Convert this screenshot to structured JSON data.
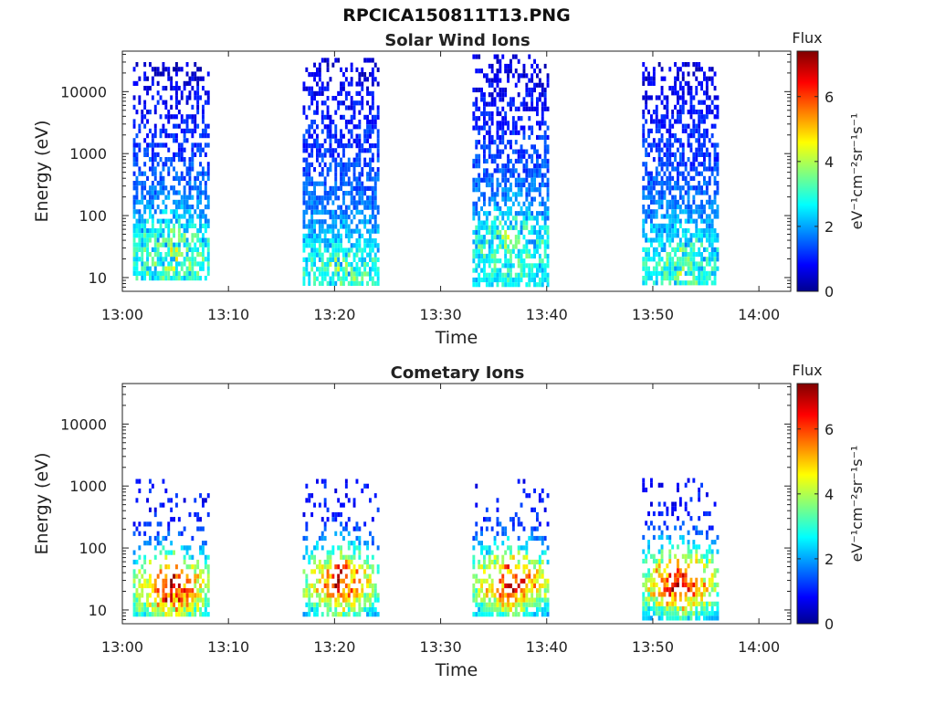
{
  "figure_title": "RPCICA150811T13.PNG",
  "colorbar": {
    "title": "Flux",
    "label": "eV⁻¹cm⁻²sr⁻¹s⁻¹",
    "range": [
      0,
      7.4
    ],
    "ticks": [
      "0",
      "2",
      "4",
      "6"
    ],
    "colormap": "jet"
  },
  "chart_data": [
    {
      "type": "heatmap",
      "title": "Solar Wind Ions",
      "xlabel": "Time",
      "ylabel": "Energy (eV)",
      "yscale": "log",
      "ylim": [
        6,
        45000
      ],
      "xlim": [
        "13:00",
        "14:03"
      ],
      "x_ticks": [
        "13:00",
        "13:10",
        "13:20",
        "13:30",
        "13:40",
        "13:50",
        "14:00"
      ],
      "y_ticks": [
        "10",
        "100",
        "1000",
        "10000"
      ],
      "clusters": [
        {
          "t_start": "13:01",
          "t_end": "13:08",
          "e_min": 10,
          "e_max": 30000,
          "peak_flux": 4.5,
          "peak_energy": 30
        },
        {
          "t_start": "13:17",
          "t_end": "13:24",
          "e_min": 8,
          "e_max": 35000,
          "peak_flux": 3.5,
          "peak_energy": 15
        },
        {
          "t_start": "13:33",
          "t_end": "13:40",
          "e_min": 8,
          "e_max": 40000,
          "peak_flux": 4.5,
          "peak_energy": 40
        },
        {
          "t_start": "13:49",
          "t_end": "13:56",
          "e_min": 8,
          "e_max": 30000,
          "peak_flux": 3.5,
          "peak_energy": 20
        }
      ]
    },
    {
      "type": "heatmap",
      "title": "Cometary Ions",
      "xlabel": "Time",
      "ylabel": "Energy (eV)",
      "yscale": "log",
      "ylim": [
        6,
        45000
      ],
      "xlim": [
        "13:00",
        "14:03"
      ],
      "x_ticks": [
        "13:00",
        "13:10",
        "13:20",
        "13:30",
        "13:40",
        "13:50",
        "14:00"
      ],
      "y_ticks": [
        "10",
        "100",
        "1000",
        "10000"
      ],
      "clusters": [
        {
          "t_start": "13:01",
          "t_end": "13:08",
          "e_min": 8,
          "e_max": 1300,
          "peak_flux": 7.2,
          "peak_energy": 25
        },
        {
          "t_start": "13:17",
          "t_end": "13:24",
          "e_min": 8,
          "e_max": 1300,
          "peak_flux": 6.8,
          "peak_energy": 30
        },
        {
          "t_start": "13:33",
          "t_end": "13:40",
          "e_min": 8,
          "e_max": 1300,
          "peak_flux": 7.0,
          "peak_energy": 30
        },
        {
          "t_start": "13:49",
          "t_end": "13:56",
          "e_min": 8,
          "e_max": 1600,
          "peak_flux": 7.3,
          "peak_energy": 30
        }
      ]
    }
  ]
}
